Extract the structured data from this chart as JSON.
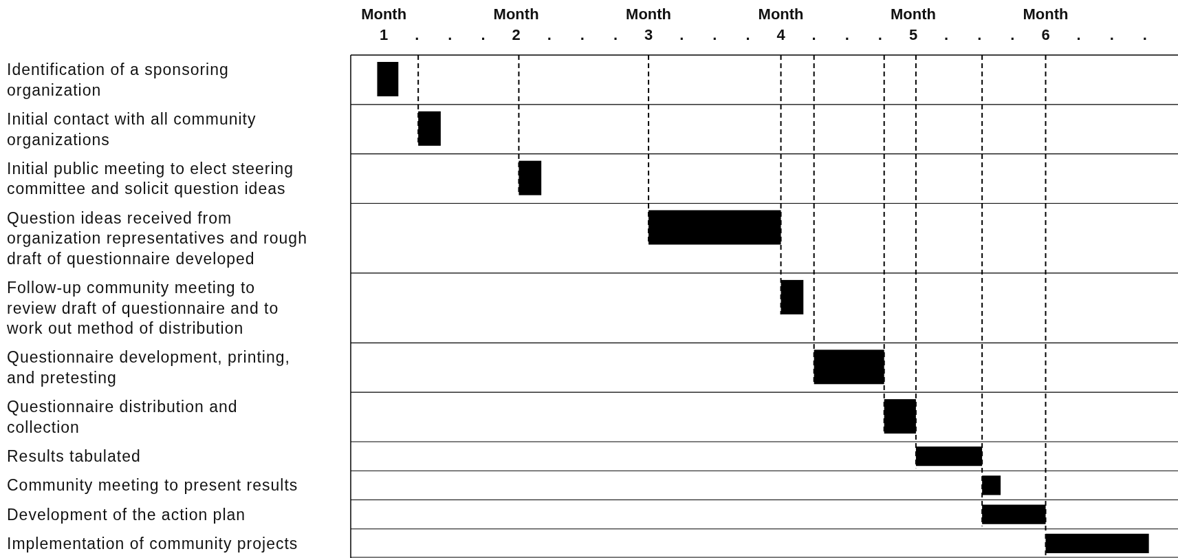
{
  "chart_data": {
    "type": "bar",
    "orientation": "horizontal",
    "color": "#000000",
    "categories": [
      "Identification of a sponsoring organization",
      "Initial contact with all community organizations",
      "Initial public meeting to elect steering committee and solicit question ideas",
      "Question ideas received from organization representatives and rough draft of questionnaire developed",
      "Follow-up community meeting to review draft of questionnaire and to work out method of distribution",
      "Questionnaire development, printing, and pretesting",
      "Questionnaire distribution and collection",
      "Results tabulated",
      "Community meeting to present results",
      "Development of the action plan",
      "Implementation of community projects"
    ],
    "base": [
      0.95,
      1.26,
      2.02,
      3.0,
      4.0,
      4.25,
      4.78,
      5.02,
      5.52,
      5.52,
      6.0
    ],
    "values": [
      0.16,
      0.17,
      0.17,
      1.0,
      0.17,
      0.53,
      0.24,
      0.5,
      0.14,
      0.48,
      0.78
    ],
    "xlim": [
      0.75,
      7
    ],
    "xlabel": "Month",
    "xticks": [
      {
        "value": 1,
        "label": "1"
      },
      {
        "value": 1.25,
        "label": "."
      },
      {
        "value": 1.5,
        "label": "."
      },
      {
        "value": 1.75,
        "label": "."
      },
      {
        "value": 2,
        "label": "2"
      },
      {
        "value": 2.25,
        "label": "."
      },
      {
        "value": 2.5,
        "label": "."
      },
      {
        "value": 2.75,
        "label": "."
      },
      {
        "value": 3,
        "label": "3"
      },
      {
        "value": 3.25,
        "label": "."
      },
      {
        "value": 3.5,
        "label": "."
      },
      {
        "value": 3.75,
        "label": "."
      },
      {
        "value": 4,
        "label": "4"
      },
      {
        "value": 4.25,
        "label": "."
      },
      {
        "value": 4.5,
        "label": "."
      },
      {
        "value": 4.75,
        "label": "."
      },
      {
        "value": 5,
        "label": "5"
      },
      {
        "value": 5.25,
        "label": "."
      },
      {
        "value": 5.5,
        "label": "."
      },
      {
        "value": 5.75,
        "label": "."
      },
      {
        "value": 6,
        "label": "6"
      },
      {
        "value": 6.25,
        "label": "."
      },
      {
        "value": 6.5,
        "label": "."
      },
      {
        "value": 6.75,
        "label": "."
      }
    ],
    "ref_lines": [
      {
        "axis": "x",
        "value": 1.26,
        "line_style": "dashed"
      },
      {
        "axis": "x",
        "value": 2.02,
        "line_style": "dashed"
      },
      {
        "axis": "x",
        "value": 3.0,
        "line_style": "dashed"
      },
      {
        "axis": "x",
        "value": 4.0,
        "line_style": "dashed"
      },
      {
        "axis": "x",
        "value": 4.25,
        "line_style": "dashed"
      },
      {
        "axis": "x",
        "value": 4.78,
        "line_style": "dashed"
      },
      {
        "axis": "x",
        "value": 5.02,
        "line_style": "dashed"
      },
      {
        "axis": "x",
        "value": 5.52,
        "line_style": "dashed"
      },
      {
        "axis": "x",
        "value": 6.0,
        "line_style": "dashed"
      }
    ]
  }
}
